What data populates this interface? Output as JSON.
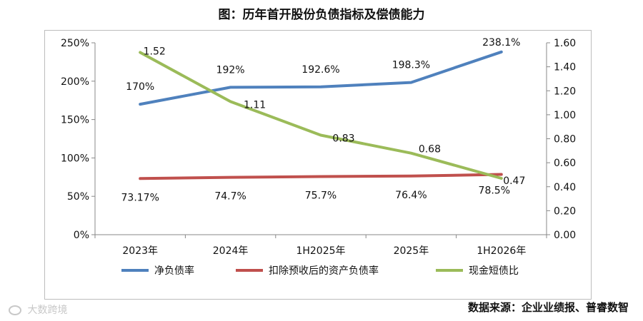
{
  "title": "图：历年首开股份负债指标及偿债能力",
  "source": "数据来源：企业业绩报、普睿数智",
  "watermark_text": "大数跨境",
  "chart_data": {
    "type": "line",
    "categories": [
      "2023年",
      "2024年",
      "1H2025年",
      "2025年",
      "1H2026年"
    ],
    "series": [
      {
        "name": "净负债率",
        "axis": "left",
        "color": "#4F81BD",
        "values": [
          170,
          192,
          192.6,
          198.3,
          238.1
        ],
        "labels": [
          "170%",
          "192%",
          "192.6%",
          "198.3%",
          "238.1%"
        ]
      },
      {
        "name": "扣除预收后的资产负债率",
        "axis": "left",
        "color": "#C0504D",
        "values": [
          73.17,
          74.7,
          75.7,
          76.4,
          78.5
        ],
        "labels": [
          "73.17%",
          "74.7%",
          "75.7%",
          "76.4%",
          "78.5%"
        ]
      },
      {
        "name": "现金短债比",
        "axis": "right",
        "color": "#9BBB59",
        "values": [
          1.52,
          1.11,
          0.83,
          0.68,
          0.47
        ],
        "labels": [
          "1.52",
          "1.11",
          "0.83",
          "0.68",
          "0.47"
        ]
      }
    ],
    "y_left": {
      "min": 0,
      "max": 250,
      "ticks": [
        "0%",
        "50%",
        "100%",
        "150%",
        "200%",
        "250%"
      ]
    },
    "y_right": {
      "min": 0,
      "max": 1.6,
      "ticks": [
        "0.00",
        "0.20",
        "0.40",
        "0.60",
        "0.80",
        "1.00",
        "1.20",
        "1.40",
        "1.60"
      ]
    },
    "legend_position": "bottom",
    "grid": false
  }
}
